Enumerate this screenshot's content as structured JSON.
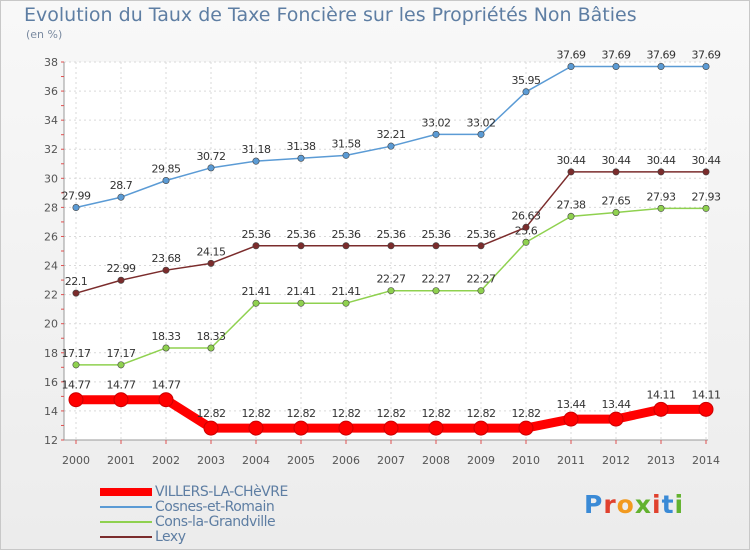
{
  "title": "Evolution du Taux de Taxe Foncière sur les Propriétés Non Bâties",
  "unit_label": "(en %)",
  "logo": {
    "text": "Proxiti",
    "letter_colors": [
      "#3a8ad6",
      "#e0412e",
      "#f29a1f",
      "#63b22f",
      "#e0412e",
      "#3a8ad6",
      "#63b22f"
    ]
  },
  "chart_data": {
    "type": "line",
    "title": "Evolution du Taux de Taxe Foncière sur les Propriétés Non Bâties",
    "ylabel": "(en %)",
    "xlabel": "",
    "x": [
      "2000",
      "2001",
      "2002",
      "2003",
      "2004",
      "2005",
      "2006",
      "2007",
      "2008",
      "2009",
      "2010",
      "2011",
      "2012",
      "2013",
      "2014"
    ],
    "ylim": [
      12,
      38
    ],
    "yticks": [
      "12",
      "14",
      "16",
      "18",
      "20",
      "22",
      "24",
      "26",
      "28",
      "30",
      "32",
      "34",
      "36",
      "38"
    ],
    "grid": true,
    "legend_position": "bottom-left",
    "series": [
      {
        "name": "VILLERS-LA-CHèVRE",
        "color": "#ff0000",
        "values": [
          14.77,
          14.77,
          14.77,
          12.82,
          12.82,
          12.82,
          12.82,
          12.82,
          12.82,
          12.82,
          12.82,
          13.44,
          13.44,
          14.11,
          14.11
        ],
        "labels": [
          "14.77",
          "14.77",
          "14.77",
          "12.82",
          "12.82",
          "12.82",
          "12.82",
          "12.82",
          "12.82",
          "12.82",
          "12.82",
          "13.44",
          "13.44",
          "14.11",
          "14.11"
        ]
      },
      {
        "name": "Cosnes-et-Romain",
        "color": "#5b9bd5",
        "values": [
          27.99,
          28.7,
          29.85,
          30.72,
          31.18,
          31.38,
          31.58,
          32.21,
          33.02,
          33.02,
          35.95,
          37.69,
          37.69,
          37.69,
          37.69
        ],
        "labels": [
          "27.99",
          "28.7",
          "29.85",
          "30.72",
          "31.18",
          "31.38",
          "31.58",
          "32.21",
          "33.02",
          "33.02",
          "35.95",
          "37.69",
          "37.69",
          "37.69",
          "37.69"
        ]
      },
      {
        "name": "Cons-la-Grandville",
        "color": "#8fd14f",
        "values": [
          17.17,
          17.17,
          18.33,
          18.33,
          21.41,
          21.41,
          21.41,
          22.27,
          22.27,
          22.27,
          25.6,
          27.38,
          27.65,
          27.93,
          27.93
        ],
        "labels": [
          "17.17",
          "17.17",
          "18.33",
          "18.33",
          "21.41",
          "21.41",
          "21.41",
          "22.27",
          "22.27",
          "22.27",
          "25.6",
          "27.38",
          "27.65",
          "27.93",
          "27.93"
        ]
      },
      {
        "name": "Lexy",
        "color": "#7b2c2c",
        "values": [
          22.1,
          22.99,
          23.68,
          24.15,
          25.36,
          25.36,
          25.36,
          25.36,
          25.36,
          25.36,
          26.63,
          30.44,
          30.44,
          30.44,
          30.44
        ],
        "labels": [
          "22.1",
          "22.99",
          "23.68",
          "24.15",
          "25.36",
          "25.36",
          "25.36",
          "25.36",
          "25.36",
          "25.36",
          "26.63",
          "30.44",
          "30.44",
          "30.44",
          "30.44"
        ]
      }
    ]
  }
}
